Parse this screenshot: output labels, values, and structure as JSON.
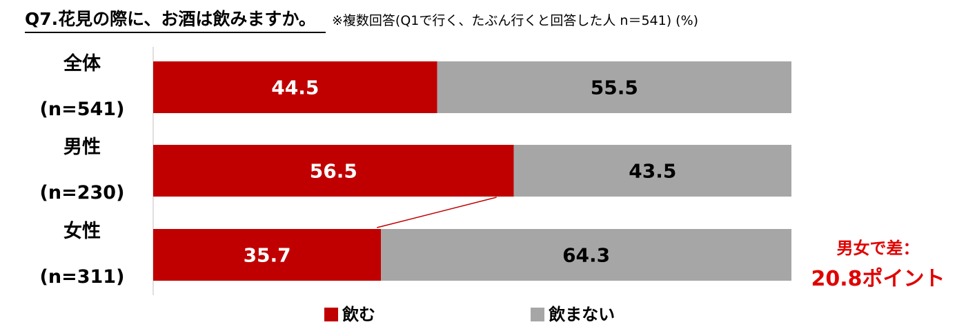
{
  "header": {
    "question": "Q7.花見の際に、お酒は飲みますか。",
    "note": "※複数回答(Q1で行く、たぶん行くと回答した人 n＝541) (%)"
  },
  "colors": {
    "drink": "#c00000",
    "no_drink": "#a6a6a6",
    "callout": "#e00000"
  },
  "chart_data": {
    "type": "bar",
    "orientation": "horizontal",
    "stacked": true,
    "categories": [
      [
        "全体",
        "(n=541)"
      ],
      [
        "男性",
        "(n=230)"
      ],
      [
        "女性",
        "(n=311)"
      ]
    ],
    "series": [
      {
        "name": "飲む",
        "values": [
          44.5,
          56.5,
          35.7
        ]
      },
      {
        "name": "飲まない",
        "values": [
          55.5,
          43.5,
          64.3
        ]
      }
    ],
    "xlim": [
      0,
      100
    ],
    "grid": false,
    "legend": "bottom"
  },
  "callout": {
    "line1": "男女で差：",
    "line2": "20.8ポイント"
  }
}
